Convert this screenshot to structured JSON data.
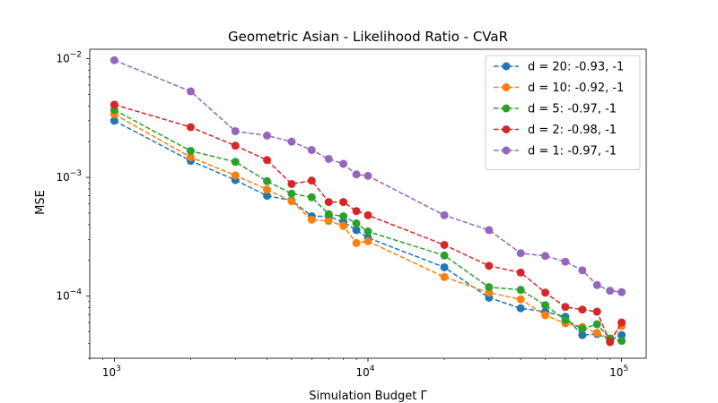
{
  "chart_data": {
    "type": "line",
    "title": "Geometric Asian - Likelihood Ratio - CVaR",
    "xlabel": "Simulation Budget Γ",
    "ylabel": "MSE",
    "xscale": "log",
    "yscale": "log",
    "xlim": [
      800,
      125000
    ],
    "ylim": [
      3e-05,
      0.012
    ],
    "grid": false,
    "legend_position": "top-right",
    "x_ticks": [
      {
        "value": 1000,
        "base": "10",
        "exp": "3"
      },
      {
        "value": 10000,
        "base": "10",
        "exp": "4"
      },
      {
        "value": 100000,
        "base": "10",
        "exp": "5"
      }
    ],
    "y_ticks": [
      {
        "value": 0.0001,
        "base": "10",
        "exp": "−4"
      },
      {
        "value": 0.001,
        "base": "10",
        "exp": "−3"
      },
      {
        "value": 0.01,
        "base": "10",
        "exp": "−2"
      }
    ],
    "x": [
      1000,
      2000,
      3000,
      4000,
      5000,
      6000,
      7000,
      8000,
      9000,
      10000,
      20000,
      30000,
      40000,
      50000,
      60000,
      70000,
      80000,
      90000,
      100000
    ],
    "series": [
      {
        "name": "d = 20: -0.93, -1",
        "color": "#1f77b4",
        "values": [
          0.003,
          0.00138,
          0.00095,
          0.0007,
          0.00064,
          0.00047,
          0.00047,
          0.00042,
          0.00036,
          0.00031,
          0.000175,
          9.7e-05,
          7.9e-05,
          7.4e-05,
          6.7e-05,
          4.7e-05,
          4.8e-05,
          4.3e-05,
          4.7e-05
        ]
      },
      {
        "name": "d = 10: -0.92, -1",
        "color": "#ff7f0e",
        "values": [
          0.0034,
          0.00148,
          0.00104,
          0.00079,
          0.00063,
          0.00044,
          0.00043,
          0.00039,
          0.00028,
          0.00029,
          0.000145,
          0.000107,
          9.4e-05,
          6.9e-05,
          5.9e-05,
          5.5e-05,
          4.9e-05,
          4.4e-05,
          5.6e-05
        ]
      },
      {
        "name": "d = 5: -0.97, -1",
        "color": "#2ca02c",
        "values": [
          0.0037,
          0.00167,
          0.00135,
          0.00093,
          0.00073,
          0.00068,
          0.00049,
          0.00047,
          0.00041,
          0.00035,
          0.00022,
          0.000119,
          0.000113,
          8.4e-05,
          6.3e-05,
          5.3e-05,
          5.8e-05,
          4.4e-05,
          4.2e-05
        ]
      },
      {
        "name": "d = 2: -0.98, -1",
        "color": "#d62728",
        "values": [
          0.0041,
          0.00265,
          0.00185,
          0.0014,
          0.00088,
          0.00094,
          0.00062,
          0.00062,
          0.00052,
          0.00048,
          0.00027,
          0.00018,
          0.000158,
          0.000107,
          8.1e-05,
          7.7e-05,
          7.4e-05,
          4.1e-05,
          6e-05
        ]
      },
      {
        "name": "d = 1: -0.97, -1",
        "color": "#9467bd",
        "values": [
          0.0097,
          0.0053,
          0.00245,
          0.00225,
          0.002,
          0.0017,
          0.00143,
          0.0013,
          0.00106,
          0.00103,
          0.00048,
          0.00036,
          0.00023,
          0.000218,
          0.000195,
          0.000165,
          0.000124,
          0.000111,
          0.000108
        ]
      }
    ]
  }
}
